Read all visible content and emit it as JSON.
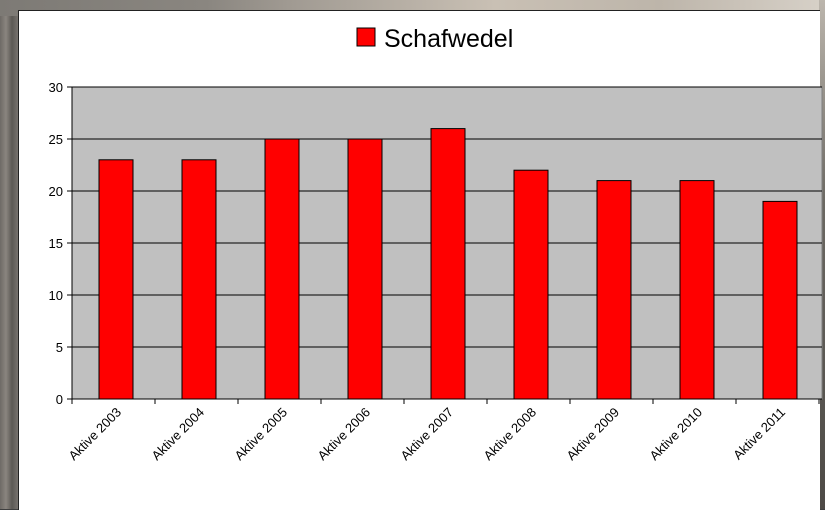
{
  "chart_data": {
    "type": "bar",
    "categories": [
      "Aktive 2003",
      "Aktive 2004",
      "Aktive 2005",
      "Aktive 2006",
      "Aktive 2007",
      "Aktive 2008",
      "Aktive 2009",
      "Aktive 2010",
      "Aktive 2011"
    ],
    "series": [
      {
        "name": "Schafwedel",
        "values": [
          23,
          23,
          25,
          25,
          26,
          22,
          21,
          21,
          19
        ],
        "color": "#ff0000"
      }
    ],
    "ylim": [
      0,
      30
    ],
    "yticks": [
      0,
      5,
      10,
      15,
      20,
      25,
      30
    ],
    "grid": true,
    "legend_position": "top-center",
    "plot_background": "#c0c0c0",
    "bar_border_color": "#000000"
  }
}
